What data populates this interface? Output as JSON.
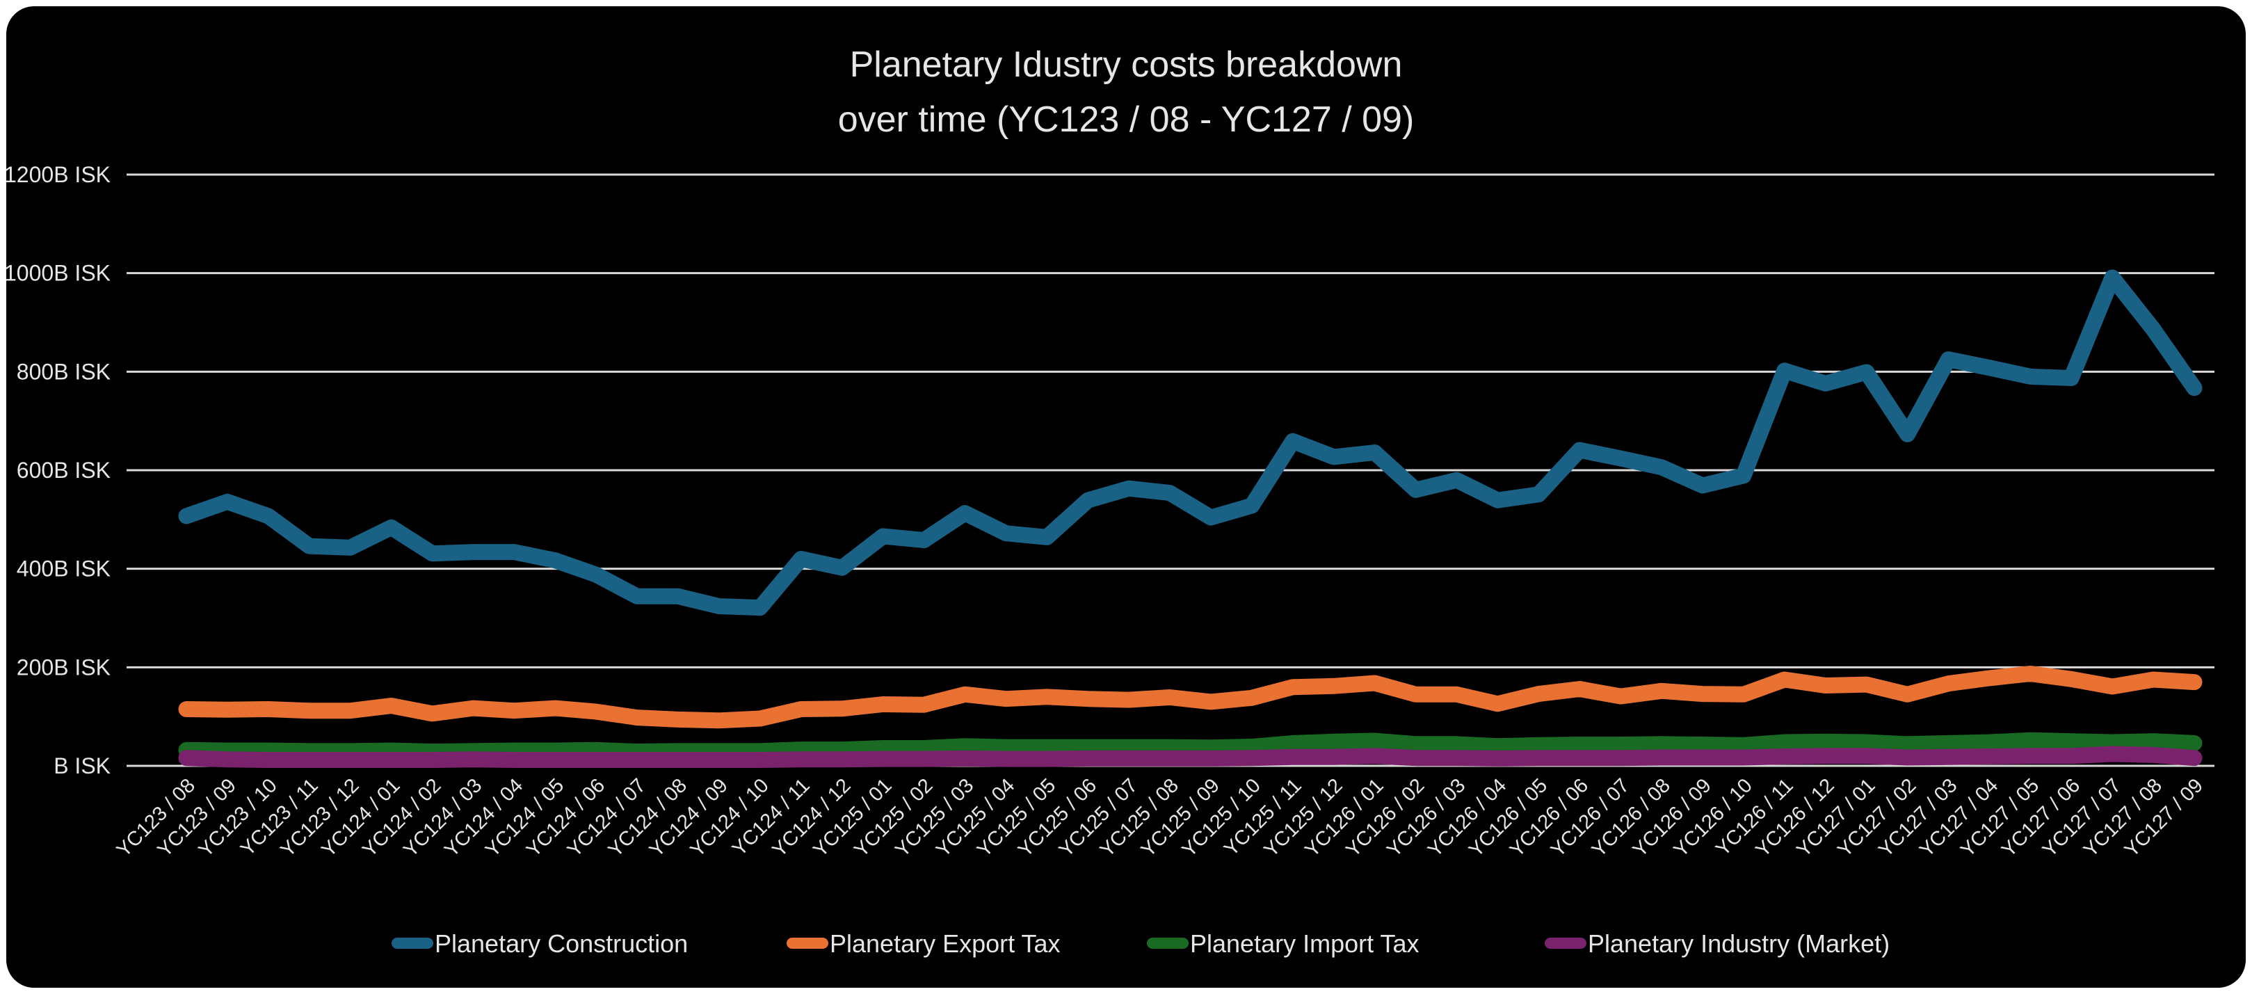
{
  "chart_data": {
    "type": "line",
    "title": [
      "Planetary Idustry costs breakdown",
      "over time (YC123 / 08 - YC127 / 09)"
    ],
    "xlabel": "",
    "ylabel": "",
    "ylim": [
      0,
      1200
    ],
    "yticks": [
      0,
      200,
      400,
      600,
      800,
      1000,
      1200
    ],
    "ytick_labels": [
      "B ISK",
      "200B ISK",
      "400B ISK",
      "600B ISK",
      "800B ISK",
      "1000B ISK",
      "1200B ISK"
    ],
    "grid": true,
    "legend_position": "bottom",
    "categories": [
      "YC123 / 08",
      "YC123 / 09",
      "YC123 / 10",
      "YC123 / 11",
      "YC123 / 12",
      "YC124 / 01",
      "YC124 / 02",
      "YC124 / 03",
      "YC124 / 04",
      "YC124 / 05",
      "YC124 / 06",
      "YC124 / 07",
      "YC124 / 08",
      "YC124 / 09",
      "YC124 / 10",
      "YC124 / 11",
      "YC124 / 12",
      "YC125 / 01",
      "YC125 / 02",
      "YC125 / 03",
      "YC125 / 04",
      "YC125 / 05",
      "YC125 / 06",
      "YC125 / 07",
      "YC125 / 08",
      "YC125 / 09",
      "YC125 / 10",
      "YC125 / 11",
      "YC125 / 12",
      "YC126 / 01",
      "YC126 / 02",
      "YC126 / 03",
      "YC126 / 04",
      "YC126 / 05",
      "YC126 / 06",
      "YC126 / 07",
      "YC126 / 08",
      "YC126 / 09",
      "YC126 / 10",
      "YC126 / 11",
      "YC126 / 12",
      "YC127 / 01",
      "YC127 / 02",
      "YC127 / 03",
      "YC127 / 04",
      "YC127 / 05",
      "YC127 / 06",
      "YC127 / 07",
      "YC127 / 08",
      "YC127 / 09"
    ],
    "series": [
      {
        "name": "Planetary Construction",
        "color": "#1a6186",
        "values": [
          507,
          536,
          507,
          446,
          443,
          484,
          431,
          434,
          434,
          417,
          388,
          344,
          344,
          324,
          321,
          420,
          402,
          466,
          458,
          513,
          472,
          464,
          539,
          563,
          554,
          504,
          528,
          659,
          627,
          636,
          560,
          580,
          539,
          551,
          641,
          624,
          606,
          569,
          589,
          802,
          776,
          799,
          673,
          825,
          808,
          790,
          787,
          991,
          886,
          767
        ]
      },
      {
        "name": "Planetary Export Tax",
        "color": "#e97132",
        "values": [
          115,
          114,
          115,
          112,
          112,
          122,
          106,
          117,
          112,
          117,
          110,
          98,
          94,
          92,
          96,
          115,
          116,
          125,
          124,
          145,
          136,
          140,
          136,
          134,
          139,
          130,
          138,
          160,
          162,
          168,
          145,
          145,
          126,
          146,
          156,
          141,
          152,
          146,
          145,
          175,
          163,
          165,
          145,
          167,
          178,
          187,
          176,
          161,
          175,
          170
        ]
      },
      {
        "name": "Planetary Import Tax",
        "color": "#196b24",
        "values": [
          32,
          31,
          31,
          30,
          30,
          31,
          29,
          30,
          31,
          31,
          32,
          29,
          30,
          30,
          30,
          33,
          33,
          36,
          36,
          40,
          38,
          38,
          38,
          38,
          38,
          37,
          39,
          46,
          49,
          51,
          44,
          44,
          40,
          42,
          43,
          43,
          44,
          43,
          42,
          48,
          49,
          48,
          44,
          46,
          48,
          52,
          50,
          48,
          50,
          46
        ]
      },
      {
        "name": "Planetary Industry (Market)",
        "color": "#7a226b",
        "values": [
          16,
          13,
          12,
          12,
          12,
          12,
          12,
          13,
          12,
          12,
          12,
          12,
          12,
          12,
          12,
          13,
          13,
          14,
          14,
          15,
          14,
          14,
          15,
          15,
          15,
          15,
          16,
          18,
          18,
          20,
          16,
          16,
          15,
          16,
          16,
          16,
          17,
          17,
          17,
          19,
          20,
          20,
          17,
          18,
          19,
          20,
          20,
          24,
          22,
          16
        ]
      }
    ]
  }
}
